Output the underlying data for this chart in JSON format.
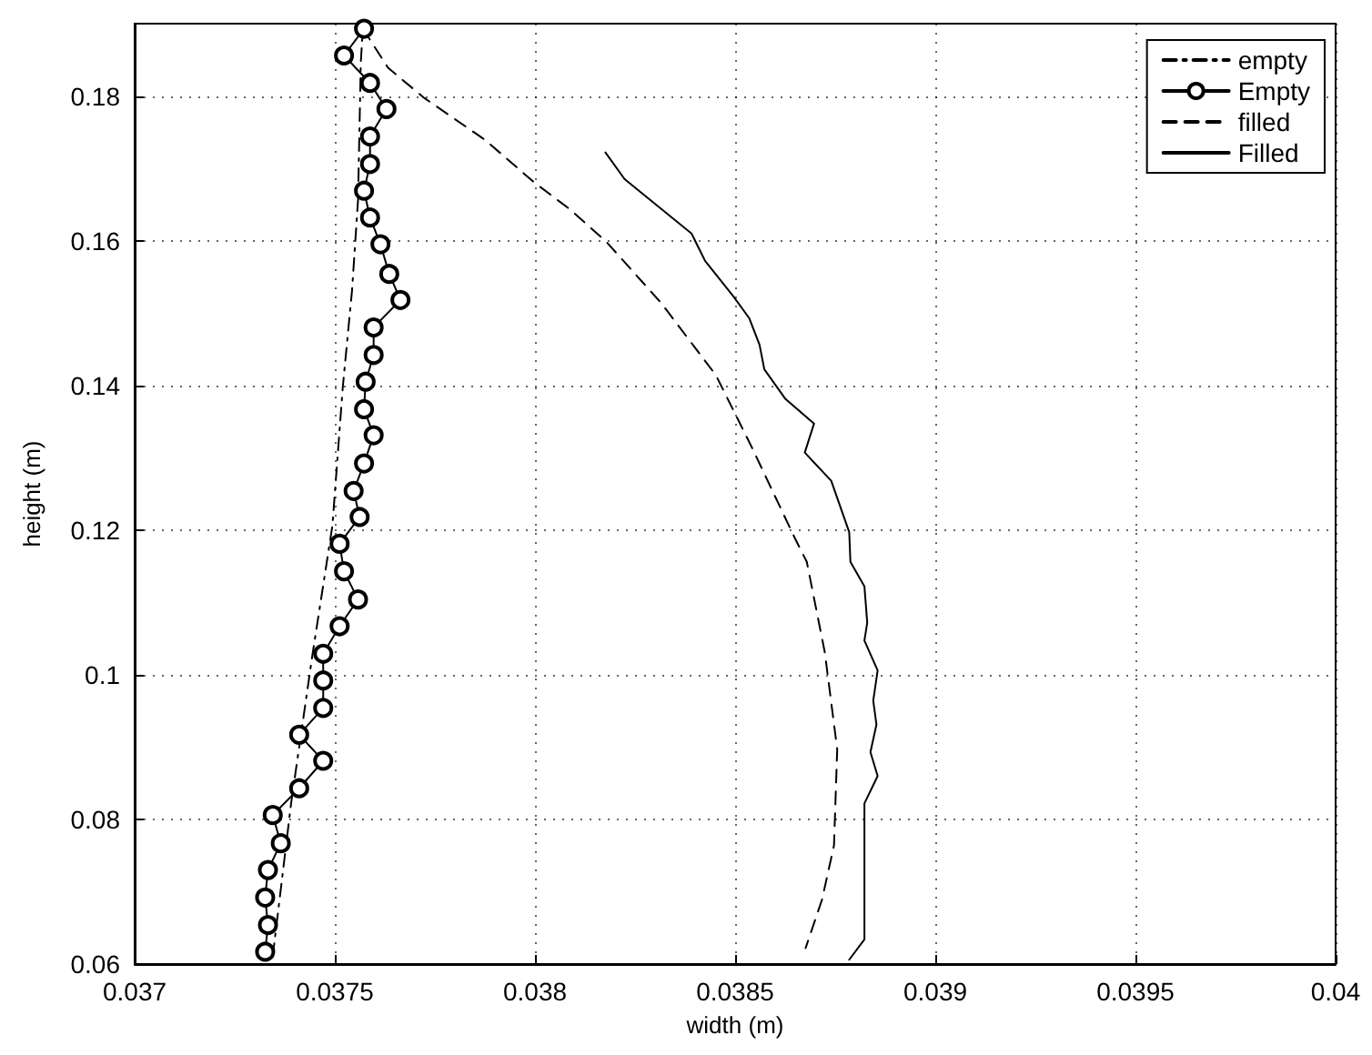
{
  "chart_data": {
    "type": "line",
    "xlabel": "width (m)",
    "ylabel": "height (m)",
    "xlim": [
      0.037,
      0.04
    ],
    "xticks": [
      0.037,
      0.0375,
      0.038,
      0.0385,
      0.039,
      0.0395,
      0.04
    ],
    "ylim": [
      0.06,
      0.19
    ],
    "yticks": [
      0.06,
      0.08,
      0.1,
      0.12,
      0.14,
      0.16,
      0.18
    ],
    "grid": true,
    "legend": "top right",
    "series": [
      {
        "name": "empty",
        "color": "#000000",
        "line_style": "dashdot",
        "marker": "none",
        "x": [
          0.037345,
          0.037391,
          0.037444,
          0.037494,
          0.03752,
          0.037543,
          0.037558,
          0.037565,
          0.03757
        ],
        "values": [
          0.0611,
          0.0823,
          0.1027,
          0.1206,
          0.1398,
          0.1531,
          0.1656,
          0.1847,
          0.1893
        ]
      },
      {
        "name": "Empty",
        "color": "#000000",
        "line_style": "solid",
        "marker": "circle",
        "x": [
          0.037573,
          0.037523,
          0.037588,
          0.037629,
          0.037588,
          0.037588,
          0.037573,
          0.037588,
          0.037614,
          0.037636,
          0.037664,
          0.037597,
          0.037597,
          0.037577,
          0.037573,
          0.037597,
          0.037573,
          0.037547,
          0.037562,
          0.037512,
          0.037523,
          0.037558,
          0.037512,
          0.037471,
          0.037471,
          0.037471,
          0.037411,
          0.037471,
          0.037411,
          0.037345,
          0.037365,
          0.037333,
          0.037326,
          0.037333,
          0.037326
        ],
        "values": [
          0.1893,
          0.1856,
          0.1818,
          0.1782,
          0.1744,
          0.1706,
          0.1669,
          0.1632,
          0.1595,
          0.1554,
          0.1518,
          0.148,
          0.1442,
          0.1405,
          0.1367,
          0.1331,
          0.1292,
          0.1254,
          0.1218,
          0.1181,
          0.1143,
          0.1104,
          0.1067,
          0.1029,
          0.0992,
          0.0954,
          0.0917,
          0.0881,
          0.0843,
          0.0806,
          0.0767,
          0.073,
          0.0692,
          0.0654,
          0.0617
        ]
      },
      {
        "name": "filled",
        "color": "#000000",
        "line_style": "dashed",
        "marker": "none",
        "x": [
          0.03757,
          0.037633,
          0.037724,
          0.037876,
          0.037997,
          0.038088,
          0.038179,
          0.038315,
          0.038452,
          0.038542,
          0.038649,
          0.038679,
          0.038724,
          0.038755,
          0.038747,
          0.038717,
          0.038676
        ],
        "values": [
          0.1893,
          0.1839,
          0.1797,
          0.1739,
          0.1681,
          0.1643,
          0.1598,
          0.1514,
          0.1414,
          0.1314,
          0.1189,
          0.1156,
          0.1031,
          0.0897,
          0.0764,
          0.0689,
          0.0622
        ]
      },
      {
        "name": "Filled",
        "color": "#000000",
        "line_style": "solid",
        "marker": "none",
        "x": [
          0.038176,
          0.038224,
          0.038391,
          0.038425,
          0.038497,
          0.038535,
          0.038561,
          0.038573,
          0.038626,
          0.038697,
          0.038674,
          0.03874,
          0.038785,
          0.038788,
          0.038823,
          0.03883,
          0.038823,
          0.038856,
          0.038845,
          0.038853,
          0.038838,
          0.038856,
          0.038823,
          0.038823,
          0.038823,
          0.038785
        ],
        "values": [
          0.1722,
          0.1685,
          0.161,
          0.1572,
          0.1522,
          0.1493,
          0.1456,
          0.1422,
          0.1381,
          0.1347,
          0.1307,
          0.1268,
          0.1197,
          0.1156,
          0.1122,
          0.1072,
          0.1047,
          0.1006,
          0.0964,
          0.0931,
          0.0893,
          0.086,
          0.0822,
          0.0747,
          0.0634,
          0.0606
        ]
      }
    ]
  }
}
